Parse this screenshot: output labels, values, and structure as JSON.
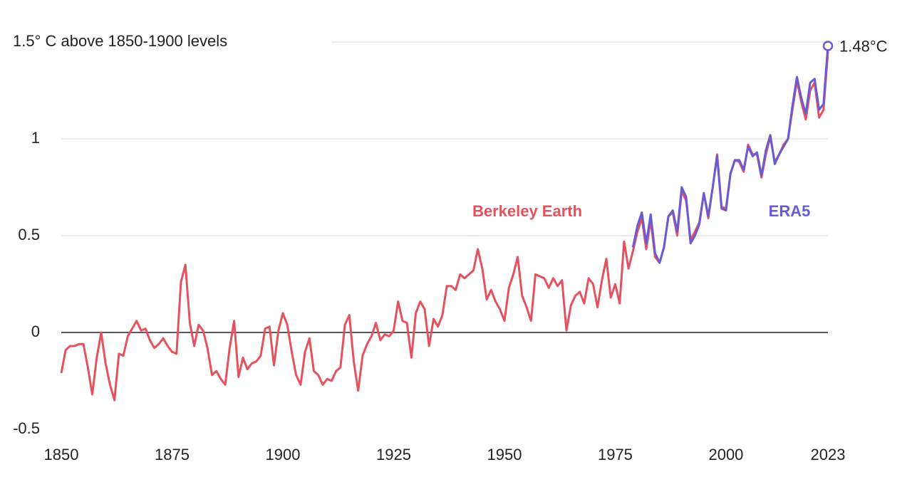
{
  "chart_data": {
    "type": "line",
    "x": [
      1850,
      1851,
      1852,
      1853,
      1854,
      1855,
      1856,
      1857,
      1858,
      1859,
      1860,
      1861,
      1862,
      1863,
      1864,
      1865,
      1866,
      1867,
      1868,
      1869,
      1870,
      1871,
      1872,
      1873,
      1874,
      1875,
      1876,
      1877,
      1878,
      1879,
      1880,
      1881,
      1882,
      1883,
      1884,
      1885,
      1886,
      1887,
      1888,
      1889,
      1890,
      1891,
      1892,
      1893,
      1894,
      1895,
      1896,
      1897,
      1898,
      1899,
      1900,
      1901,
      1902,
      1903,
      1904,
      1905,
      1906,
      1907,
      1908,
      1909,
      1910,
      1911,
      1912,
      1913,
      1914,
      1915,
      1916,
      1917,
      1918,
      1919,
      1920,
      1921,
      1922,
      1923,
      1924,
      1925,
      1926,
      1927,
      1928,
      1929,
      1930,
      1931,
      1932,
      1933,
      1934,
      1935,
      1936,
      1937,
      1938,
      1939,
      1940,
      1941,
      1942,
      1943,
      1944,
      1945,
      1946,
      1947,
      1948,
      1949,
      1950,
      1951,
      1952,
      1953,
      1954,
      1955,
      1956,
      1957,
      1958,
      1959,
      1960,
      1961,
      1962,
      1963,
      1964,
      1965,
      1966,
      1967,
      1968,
      1969,
      1970,
      1971,
      1972,
      1973,
      1974,
      1975,
      1976,
      1977,
      1978,
      1979,
      1980,
      1981,
      1982,
      1983,
      1984,
      1985,
      1986,
      1987,
      1988,
      1989,
      1990,
      1991,
      1992,
      1993,
      1994,
      1995,
      1996,
      1997,
      1998,
      1999,
      2000,
      2001,
      2002,
      2003,
      2004,
      2005,
      2006,
      2007,
      2008,
      2009,
      2010,
      2011,
      2012,
      2013,
      2014,
      2015,
      2016,
      2017,
      2018,
      2019,
      2020,
      2021,
      2022,
      2023
    ],
    "series": [
      {
        "name": "Berkeley Earth",
        "color": "#e5525e",
        "values": [
          -0.21,
          -0.09,
          -0.07,
          -0.07,
          -0.06,
          -0.06,
          -0.18,
          -0.32,
          -0.13,
          0.0,
          -0.16,
          -0.27,
          -0.35,
          -0.11,
          -0.12,
          -0.02,
          0.02,
          0.06,
          0.01,
          0.02,
          -0.04,
          -0.08,
          -0.06,
          -0.03,
          -0.07,
          -0.1,
          -0.11,
          0.26,
          0.35,
          0.05,
          -0.07,
          0.04,
          0.01,
          -0.08,
          -0.22,
          -0.2,
          -0.24,
          -0.27,
          -0.08,
          0.06,
          -0.23,
          -0.13,
          -0.19,
          -0.16,
          -0.15,
          -0.12,
          0.02,
          0.03,
          -0.17,
          0.01,
          0.1,
          0.04,
          -0.1,
          -0.22,
          -0.27,
          -0.1,
          -0.03,
          -0.2,
          -0.22,
          -0.27,
          -0.24,
          -0.25,
          -0.2,
          -0.18,
          0.04,
          0.09,
          -0.15,
          -0.3,
          -0.12,
          -0.06,
          -0.02,
          0.05,
          -0.04,
          -0.01,
          -0.02,
          0.01,
          0.16,
          0.06,
          0.05,
          -0.13,
          0.1,
          0.16,
          0.12,
          -0.07,
          0.07,
          0.03,
          0.09,
          0.24,
          0.24,
          0.22,
          0.3,
          0.28,
          0.3,
          0.32,
          0.43,
          0.33,
          0.17,
          0.22,
          0.16,
          0.12,
          0.06,
          0.23,
          0.3,
          0.39,
          0.19,
          0.13,
          0.06,
          0.3,
          0.29,
          0.28,
          0.23,
          0.28,
          0.24,
          0.27,
          0.01,
          0.14,
          0.19,
          0.21,
          0.15,
          0.28,
          0.25,
          0.13,
          0.27,
          0.38,
          0.18,
          0.25,
          0.15,
          0.47,
          0.33,
          0.42,
          0.52,
          0.59,
          0.43,
          0.58,
          0.39,
          0.36,
          0.44,
          0.6,
          0.62,
          0.5,
          0.73,
          0.68,
          0.48,
          0.52,
          0.57,
          0.72,
          0.59,
          0.75,
          0.92,
          0.65,
          0.64,
          0.82,
          0.89,
          0.88,
          0.83,
          0.97,
          0.92,
          0.92,
          0.8,
          0.92,
          1.01,
          0.88,
          0.92,
          0.97,
          1.0,
          1.15,
          1.3,
          1.19,
          1.1,
          1.25,
          1.29,
          1.11,
          1.15,
          1.45
        ]
      },
      {
        "name": "ERA5",
        "color": "#6b5bd2",
        "values": [
          null,
          null,
          null,
          null,
          null,
          null,
          null,
          null,
          null,
          null,
          null,
          null,
          null,
          null,
          null,
          null,
          null,
          null,
          null,
          null,
          null,
          null,
          null,
          null,
          null,
          null,
          null,
          null,
          null,
          null,
          null,
          null,
          null,
          null,
          null,
          null,
          null,
          null,
          null,
          null,
          null,
          null,
          null,
          null,
          null,
          null,
          null,
          null,
          null,
          null,
          null,
          null,
          null,
          null,
          null,
          null,
          null,
          null,
          null,
          null,
          null,
          null,
          null,
          null,
          null,
          null,
          null,
          null,
          null,
          null,
          null,
          null,
          null,
          null,
          null,
          null,
          null,
          null,
          null,
          null,
          null,
          null,
          null,
          null,
          null,
          null,
          null,
          null,
          null,
          null,
          null,
          null,
          null,
          null,
          null,
          null,
          null,
          null,
          null,
          null,
          null,
          null,
          null,
          null,
          null,
          null,
          null,
          null,
          null,
          null,
          null,
          null,
          null,
          null,
          null,
          null,
          null,
          null,
          null,
          null,
          null,
          null,
          null,
          null,
          null,
          null,
          null,
          null,
          null,
          0.44,
          0.55,
          0.62,
          0.46,
          0.61,
          0.41,
          0.36,
          0.44,
          0.6,
          0.63,
          0.52,
          0.75,
          0.7,
          0.46,
          0.5,
          0.56,
          0.72,
          0.6,
          0.75,
          0.91,
          0.64,
          0.63,
          0.82,
          0.89,
          0.89,
          0.84,
          0.96,
          0.91,
          0.93,
          0.81,
          0.94,
          1.02,
          0.87,
          0.92,
          0.96,
          1.0,
          1.17,
          1.32,
          1.21,
          1.13,
          1.29,
          1.31,
          1.15,
          1.18,
          1.48
        ],
        "value_labels": [
          null,
          null,
          null,
          null,
          null,
          null,
          null,
          null,
          null,
          null,
          null,
          null,
          null,
          null,
          null,
          null,
          null,
          null,
          null,
          null,
          null,
          null,
          null,
          null,
          null,
          null,
          null,
          null,
          null,
          null,
          null,
          null,
          null,
          null,
          null,
          null,
          null,
          null,
          null,
          null,
          null,
          null,
          null,
          null,
          null,
          null,
          null,
          null,
          null,
          null,
          null,
          null,
          null,
          null,
          null,
          null,
          null,
          null,
          null,
          null,
          null,
          null,
          null,
          null,
          null,
          null,
          null,
          null,
          null,
          null,
          null,
          null,
          null,
          null,
          null,
          null,
          null,
          null,
          null,
          null,
          null,
          null,
          null,
          null,
          null,
          null,
          null,
          null,
          null,
          null,
          null,
          null,
          null,
          null,
          null,
          null,
          null,
          null,
          null,
          null,
          null,
          null,
          null,
          null,
          null,
          null,
          null,
          null,
          null,
          null,
          null,
          null,
          null,
          null,
          null,
          null,
          null,
          null,
          null,
          null,
          null,
          null,
          null,
          null,
          null,
          null,
          null,
          null,
          null,
          null,
          null,
          null,
          null,
          null,
          null,
          null,
          null,
          null,
          null,
          null,
          null,
          null,
          null,
          null,
          null,
          null,
          null,
          null,
          null,
          null,
          null,
          null,
          null,
          null,
          null,
          null,
          null,
          null,
          null,
          null,
          null,
          null,
          null,
          null,
          null,
          null,
          null,
          null,
          null,
          null,
          null,
          null,
          null,
          "1.48°C"
        ]
      }
    ],
    "xlim": [
      1850,
      2023
    ],
    "xticks": [
      1850,
      1875,
      1900,
      1925,
      1950,
      1975,
      2000,
      2023
    ],
    "ylim": [
      -0.5,
      1.5
    ],
    "yticks": [
      -0.5,
      0,
      0.5,
      1,
      {
        "value": 1.5,
        "label": "1.5° C above 1850-1900 levels"
      }
    ],
    "grid": true
  }
}
